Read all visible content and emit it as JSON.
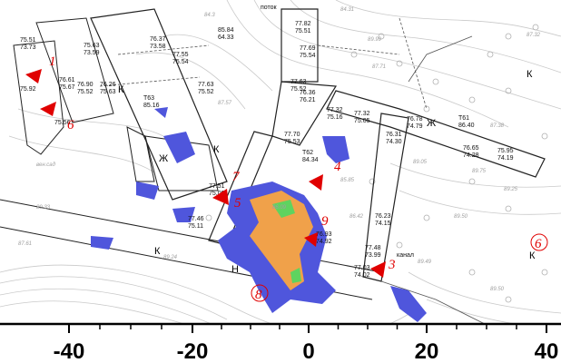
{
  "axis": {
    "ticks": [
      "-40",
      "-20",
      "0",
      "20",
      "40"
    ]
  },
  "markers": [
    {
      "id": "m1",
      "label": "1"
    },
    {
      "id": "m6a",
      "label": "6"
    },
    {
      "id": "m7",
      "label": "7"
    },
    {
      "id": "m5",
      "label": "5"
    },
    {
      "id": "m4",
      "label": "4"
    },
    {
      "id": "m9",
      "label": "9"
    },
    {
      "id": "m3",
      "label": "3"
    },
    {
      "id": "m8",
      "label": "8"
    },
    {
      "id": "m6b",
      "label": "6"
    }
  ],
  "elevations": [
    [
      "75.51",
      "73.73"
    ],
    [
      "75.63",
      "73.59"
    ],
    [
      "76.37",
      "73.58"
    ],
    [
      "77.55",
      "75.54"
    ],
    [
      "77.82",
      "75.51"
    ],
    [
      "77.69",
      "75.54"
    ],
    [
      "85.84",
      "64.33"
    ],
    [
      "77.63",
      "75.52"
    ],
    [
      "77.63",
      "75.52"
    ],
    [
      "76.26",
      "75.63"
    ],
    [
      "76.61",
      "75.67"
    ],
    [
      "76.90",
      "75.52"
    ],
    [
      "75.92",
      ""
    ],
    [
      "75.56",
      ""
    ],
    [
      "T63",
      "85.16"
    ],
    [
      "76.36",
      "76.21"
    ],
    [
      "77.70",
      "75.53"
    ],
    [
      "77.32",
      "75.16"
    ],
    [
      "77.32",
      "75.05"
    ],
    [
      "76.78",
      "74.79"
    ],
    [
      "76.31",
      "74.30"
    ],
    [
      "T61",
      "86.40"
    ],
    [
      "76.65",
      "74.28"
    ],
    [
      "75.95",
      "74.19"
    ],
    [
      "T62",
      "84.34"
    ],
    [
      "77.51",
      "75.09"
    ],
    [
      "77.46",
      "75.11"
    ],
    [
      "76.93",
      "74.92"
    ],
    [
      "76.23",
      "74.15"
    ],
    [
      "77.48",
      "73.99"
    ],
    [
      "77.03",
      "74.02"
    ]
  ],
  "road_labels": [
    "К",
    "К",
    "К",
    "К",
    "Ж",
    "Ж",
    "Н",
    "К"
  ],
  "text_labels": {
    "potok": "поток",
    "kanal": "канал",
    "sad": "вен.сад"
  },
  "colors": {
    "anomaly_low": "#4f56dc",
    "anomaly_mid": "#f0a14a",
    "anomaly_high": "#5fd35f",
    "marker": "#e00000"
  }
}
